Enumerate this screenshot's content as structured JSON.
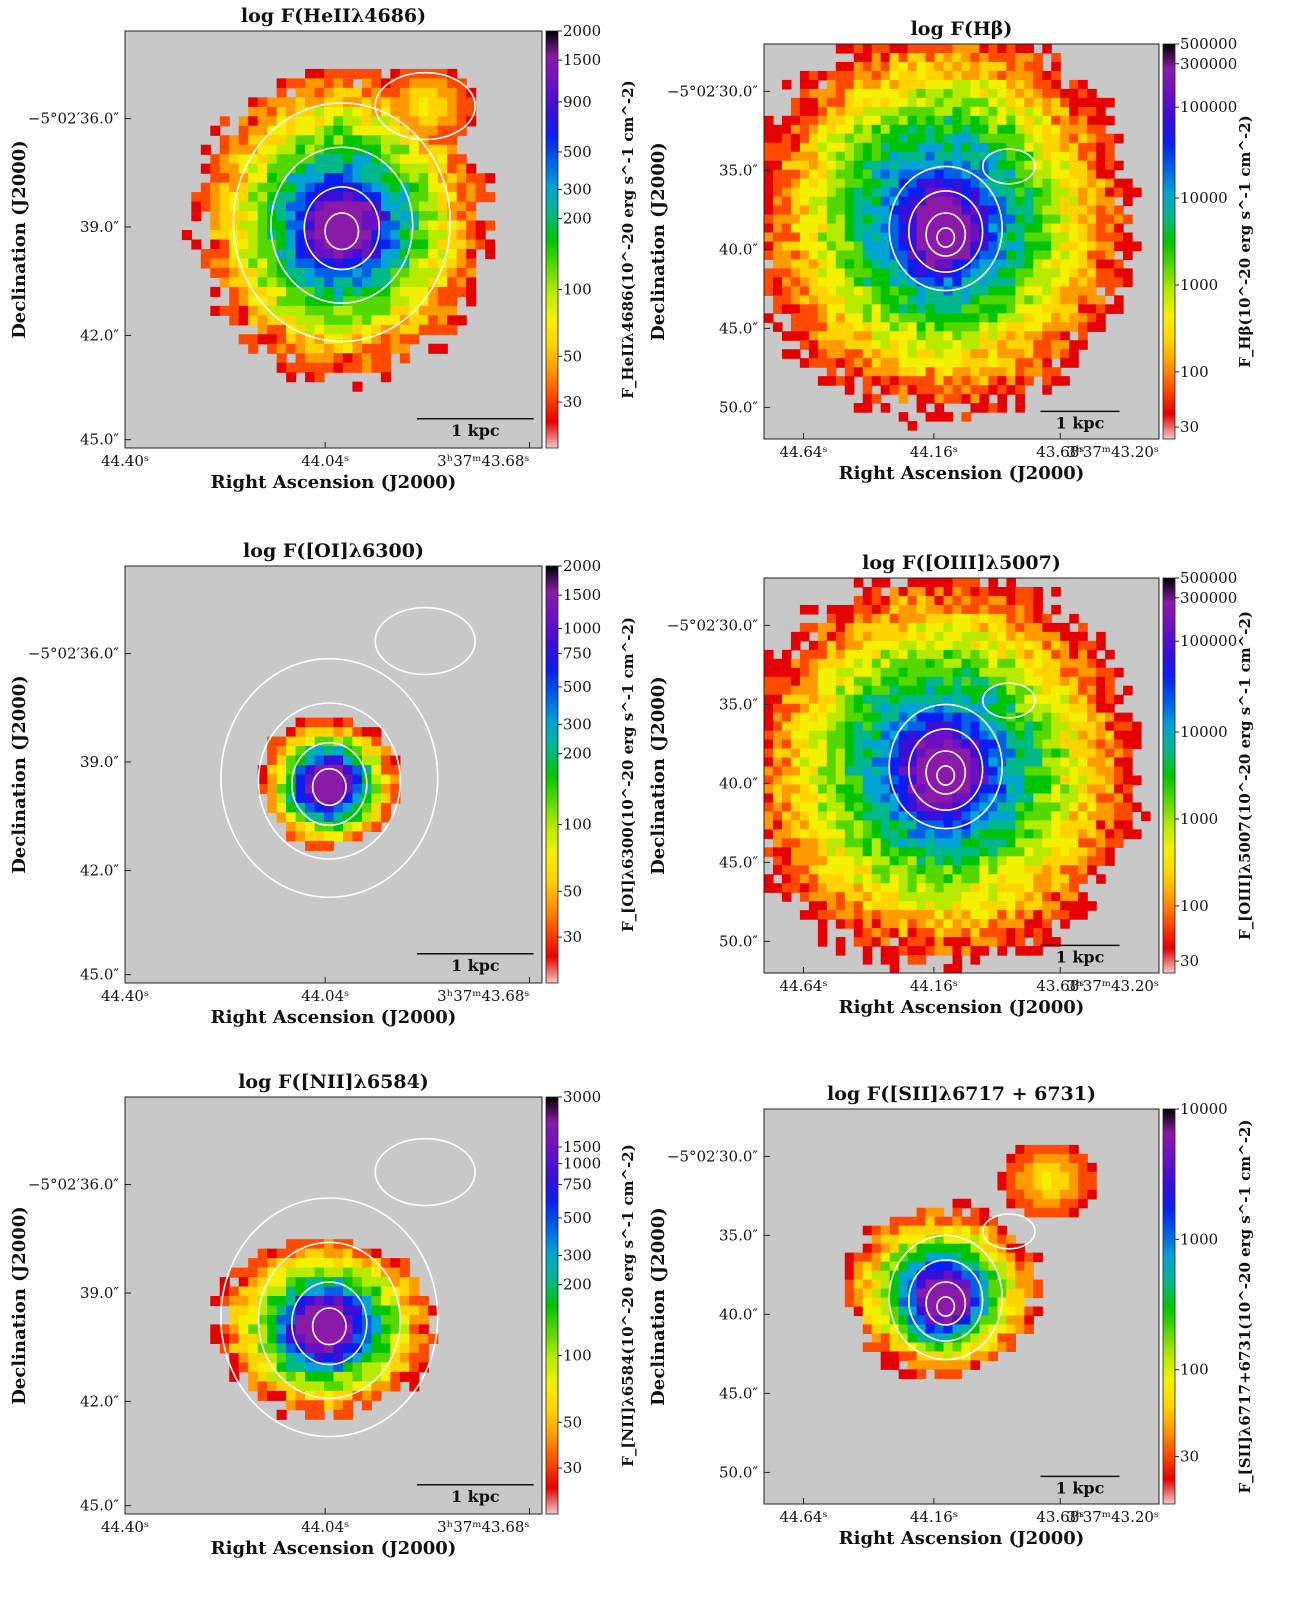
{
  "scale_bar_label": "1 kpc",
  "colormap": [
    "#f0c8c8",
    "#e60000",
    "#ff4a00",
    "#ff9a00",
    "#ffd400",
    "#f4f100",
    "#b6ea00",
    "#55d800",
    "#00c400",
    "#00b889",
    "#00a3d4",
    "#0060e6",
    "#0a1ef0",
    "#3a0fd8",
    "#6a11c4",
    "#8b1aa8",
    "#000000"
  ],
  "panels": [
    {
      "title": "log F(HeIIλ4686)",
      "xlabel": "Right Ascension (J2000)",
      "ylabel": "Declination (J2000)",
      "cbar_label": "F_HeIIλ4686(10^-20 erg s^-1 cm^-2)",
      "x_ticks": [
        "44.40ˢ",
        "44.04ˢ",
        "3ʰ37ᵐ43.68ˢ"
      ],
      "y_ticks": [
        "−5°02′36.0″",
        "39.0″",
        "42.0″",
        "45.0″"
      ],
      "cbar_ticks": [
        "2000",
        "1500",
        "900",
        "500",
        "300",
        "200",
        "100",
        "50",
        "30"
      ]
    },
    {
      "title": "log F(Hβ)",
      "xlabel": "Right Ascension (J2000)",
      "ylabel": "Declination (J2000)",
      "cbar_label": "F_Hβ(10^-20 erg s^-1 cm^-2)",
      "x_ticks": [
        "44.64ˢ",
        "44.16ˢ",
        "43.68ˢ",
        "3ʰ37ᵐ43.20ˢ"
      ],
      "y_ticks": [
        "−5°02′30.0″",
        "35.0″",
        "40.0″",
        "45.0″",
        "50.0″"
      ],
      "cbar_ticks": [
        "500000",
        "300000",
        "100000",
        "10000",
        "1000",
        "100",
        "30"
      ]
    },
    {
      "title": "log F([OI]λ6300)",
      "xlabel": "Right Ascension (J2000)",
      "ylabel": "Declination (J2000)",
      "cbar_label": "F_[OI]λ6300(10^-20 erg s^-1 cm^-2)",
      "x_ticks": [
        "44.40ˢ",
        "44.04ˢ",
        "3ʰ37ᵐ43.68ˢ"
      ],
      "y_ticks": [
        "−5°02′36.0″",
        "39.0″",
        "42.0″",
        "45.0″"
      ],
      "cbar_ticks": [
        "2000",
        "1500",
        "1000",
        "750",
        "500",
        "300",
        "200",
        "100",
        "50",
        "30"
      ]
    },
    {
      "title": "log F([OIII]λ5007)",
      "xlabel": "Right Ascension (J2000)",
      "ylabel": "Declination (J2000)",
      "cbar_label": "F_[OIII]λ5007(10^-20 erg s^-1 cm^-2)",
      "x_ticks": [
        "44.64ˢ",
        "44.16ˢ",
        "43.68ˢ",
        "3ʰ37ᵐ43.20ˢ"
      ],
      "y_ticks": [
        "−5°02′30.0″",
        "35.0″",
        "40.0″",
        "45.0″",
        "50.0″"
      ],
      "cbar_ticks": [
        "500000",
        "300000",
        "100000",
        "10000",
        "1000",
        "100",
        "30"
      ]
    },
    {
      "title": "log F([NII]λ6584)",
      "xlabel": "Right Ascension (J2000)",
      "ylabel": "Declination (J2000)",
      "cbar_label": "F_[NII]λ6584(10^-20 erg s^-1 cm^-2)",
      "x_ticks": [
        "44.40ˢ",
        "44.04ˢ",
        "3ʰ37ᵐ43.68ˢ"
      ],
      "y_ticks": [
        "−5°02′36.0″",
        "39.0″",
        "42.0″",
        "45.0″"
      ],
      "cbar_ticks": [
        "3000",
        "1500",
        "1000",
        "750",
        "500",
        "300",
        "200",
        "100",
        "50",
        "30"
      ]
    },
    {
      "title": "log F([SII]λ6717 + 6731)",
      "xlabel": "Right Ascension (J2000)",
      "ylabel": "Declination (J2000)",
      "cbar_label": "F_[SII]λ6717+6731(10^-20 erg s^-1 cm^-2)",
      "x_ticks": [
        "44.64ˢ",
        "44.16ˢ",
        "43.68ˢ",
        "3ʰ37ᵐ43.20ˢ"
      ],
      "y_ticks": [
        "−5°02′30.0″",
        "35.0″",
        "40.0″",
        "45.0″",
        "50.0″"
      ],
      "cbar_ticks": [
        "10000",
        "1000",
        "100",
        "30"
      ]
    }
  ]
}
